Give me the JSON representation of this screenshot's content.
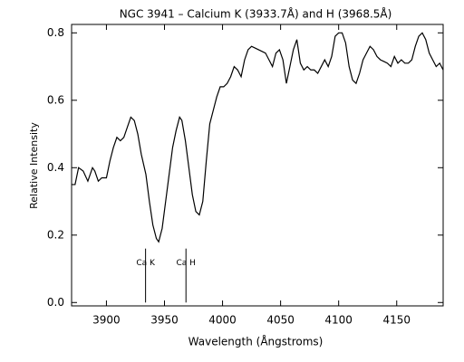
{
  "chart_data": {
    "type": "line",
    "title": "NGC 3941 – Calcium K (3933.7Å) and H (3968.5Å)",
    "xlabel": "Wavelength (Ångstroms)",
    "ylabel": "Relative Intensity",
    "color": "#000000",
    "x": [
      3870,
      3873,
      3876,
      3880,
      3884,
      3888,
      3890,
      3893,
      3896,
      3900,
      3903,
      3906,
      3909,
      3912,
      3915,
      3918,
      3921,
      3924,
      3927,
      3930,
      3934,
      3937,
      3940,
      3943,
      3945,
      3948,
      3951,
      3954,
      3957,
      3960,
      3963,
      3965,
      3968,
      3971,
      3974,
      3977,
      3980,
      3983,
      3986,
      3989,
      3992,
      3995,
      3998,
      4001,
      4004,
      4007,
      4010,
      4013,
      4016,
      4019,
      4022,
      4025,
      4028,
      4031,
      4034,
      4037,
      4040,
      4043,
      4046,
      4049,
      4052,
      4055,
      4058,
      4061,
      4064,
      4067,
      4070,
      4073,
      4076,
      4079,
      4082,
      4085,
      4088,
      4091,
      4094,
      4097,
      4100,
      4103,
      4106,
      4109,
      4112,
      4115,
      4118,
      4121,
      4124,
      4127,
      4130,
      4133,
      4136,
      4139,
      4142,
      4145,
      4148,
      4151,
      4154,
      4157,
      4160,
      4163,
      4166,
      4169,
      4172,
      4175,
      4178,
      4181,
      4184,
      4187,
      4190
    ],
    "values": [
      0.35,
      0.35,
      0.4,
      0.39,
      0.36,
      0.4,
      0.39,
      0.36,
      0.37,
      0.37,
      0.42,
      0.46,
      0.49,
      0.48,
      0.49,
      0.52,
      0.55,
      0.54,
      0.5,
      0.44,
      0.38,
      0.3,
      0.23,
      0.19,
      0.18,
      0.22,
      0.3,
      0.38,
      0.46,
      0.51,
      0.55,
      0.54,
      0.48,
      0.4,
      0.32,
      0.27,
      0.26,
      0.3,
      0.42,
      0.53,
      0.57,
      0.61,
      0.64,
      0.64,
      0.65,
      0.67,
      0.7,
      0.69,
      0.67,
      0.72,
      0.75,
      0.76,
      0.755,
      0.75,
      0.745,
      0.74,
      0.72,
      0.7,
      0.74,
      0.75,
      0.72,
      0.65,
      0.7,
      0.75,
      0.78,
      0.71,
      0.69,
      0.7,
      0.69,
      0.69,
      0.68,
      0.7,
      0.72,
      0.7,
      0.73,
      0.79,
      0.8,
      0.8,
      0.77,
      0.7,
      0.66,
      0.65,
      0.68,
      0.72,
      0.74,
      0.76,
      0.75,
      0.73,
      0.72,
      0.715,
      0.71,
      0.7,
      0.73,
      0.71,
      0.72,
      0.71,
      0.71,
      0.72,
      0.76,
      0.79,
      0.8,
      0.78,
      0.74,
      0.72,
      0.7,
      0.71,
      0.69
    ],
    "xlim": [
      3870,
      4190
    ],
    "xticks": [
      3900,
      3950,
      4000,
      4050,
      4100,
      4150
    ],
    "ylim": [
      -0.01,
      0.825
    ],
    "yticks": [
      {
        "value": 0,
        "label": "0.0"
      },
      0.2,
      0.4,
      0.6,
      0.8
    ],
    "annotations": [
      {
        "label": "Ca K",
        "x": 3933.7,
        "y": 0.16
      },
      {
        "label": "Ca H",
        "x": 3968.5,
        "y": 0.16
      }
    ]
  }
}
